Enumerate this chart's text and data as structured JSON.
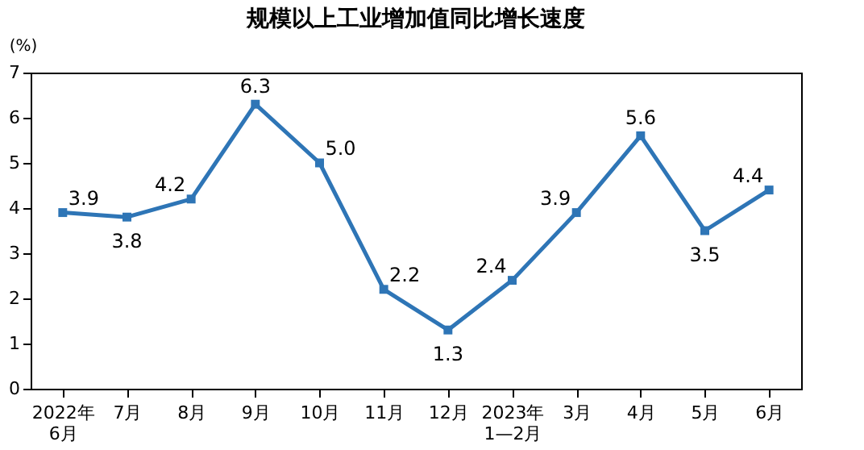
{
  "chart_data": {
    "type": "line",
    "title": "规模以上工业增加值同比增长速度",
    "ylabel": "(%)",
    "categories": [
      "2022年\n6月",
      "7月",
      "8月",
      "9月",
      "10月",
      "11月",
      "12月",
      "2023年\n1—2月",
      "3月",
      "4月",
      "5月",
      "6月"
    ],
    "series": [
      {
        "color": "#2e75b6",
        "values": [
          3.9,
          3.8,
          4.2,
          6.3,
          5.0,
          2.2,
          1.3,
          2.4,
          3.9,
          5.6,
          3.5,
          4.4
        ]
      }
    ],
    "value_labels": [
      "3.9",
      "3.8",
      "4.2",
      "6.3",
      "5.0",
      "2.2",
      "1.3",
      "2.4",
      "3.9",
      "5.6",
      "3.5",
      "4.4"
    ],
    "ylim": [
      0,
      7
    ],
    "yticks": [
      0,
      1,
      2,
      3,
      4,
      5,
      6,
      7
    ],
    "grid": false,
    "legend": false,
    "marker": "square",
    "line_style": "solid"
  }
}
